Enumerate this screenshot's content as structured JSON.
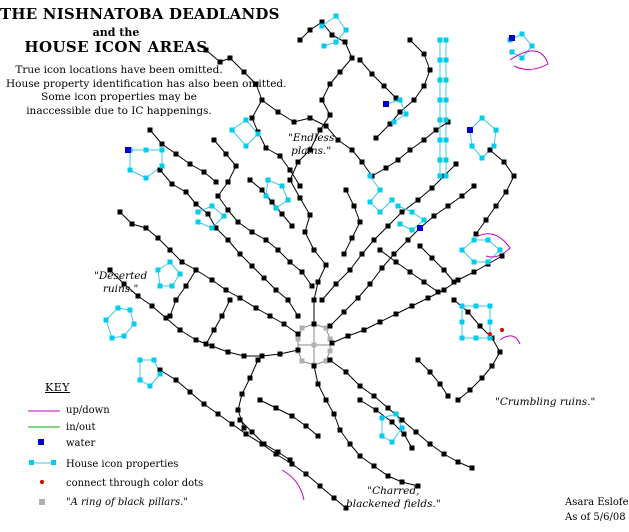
{
  "title": {
    "line1": "THE NISHNATOBA DEADLANDS",
    "line2": "and the",
    "line3": "HOUSE ICON AREAS"
  },
  "notes": [
    "True icon locations have been omitted.",
    "House property identification has also been omitted.",
    "Some icon properties may be",
    "inaccessible due to IC happenings."
  ],
  "annotations": {
    "endless_plains": [
      "\"Endless",
      "plains.\""
    ],
    "deserted_ruins": [
      "\"Deserted",
      "ruins.\""
    ],
    "crumbling_ruins": "\"Crumbling ruins.\"",
    "charred_fields": [
      "\"Charred,",
      "blackened fields.\""
    ]
  },
  "key": {
    "title": "KEY",
    "items": [
      {
        "label": "up/down",
        "color": "#c000c0"
      },
      {
        "label": "in/out",
        "color": "#00b000"
      },
      {
        "label": "water",
        "color": "#0000d0"
      },
      {
        "label": "House icon properties",
        "color": "#00ccee"
      },
      {
        "label": "connect through color dots",
        "color": "#e00000"
      },
      {
        "label": "\"A ring of black pillars.\"",
        "color": "#b0b0b0"
      }
    ]
  },
  "signature": {
    "author": "Asara Eslofe",
    "date": "As of 5/6/08"
  },
  "colors": {
    "room": "#000000",
    "house": "#00ccee",
    "water": "#0000d0",
    "updown": "#c000c0",
    "inout": "#00b000",
    "connect": "#e00000",
    "pillars": "#b0b0b0"
  }
}
